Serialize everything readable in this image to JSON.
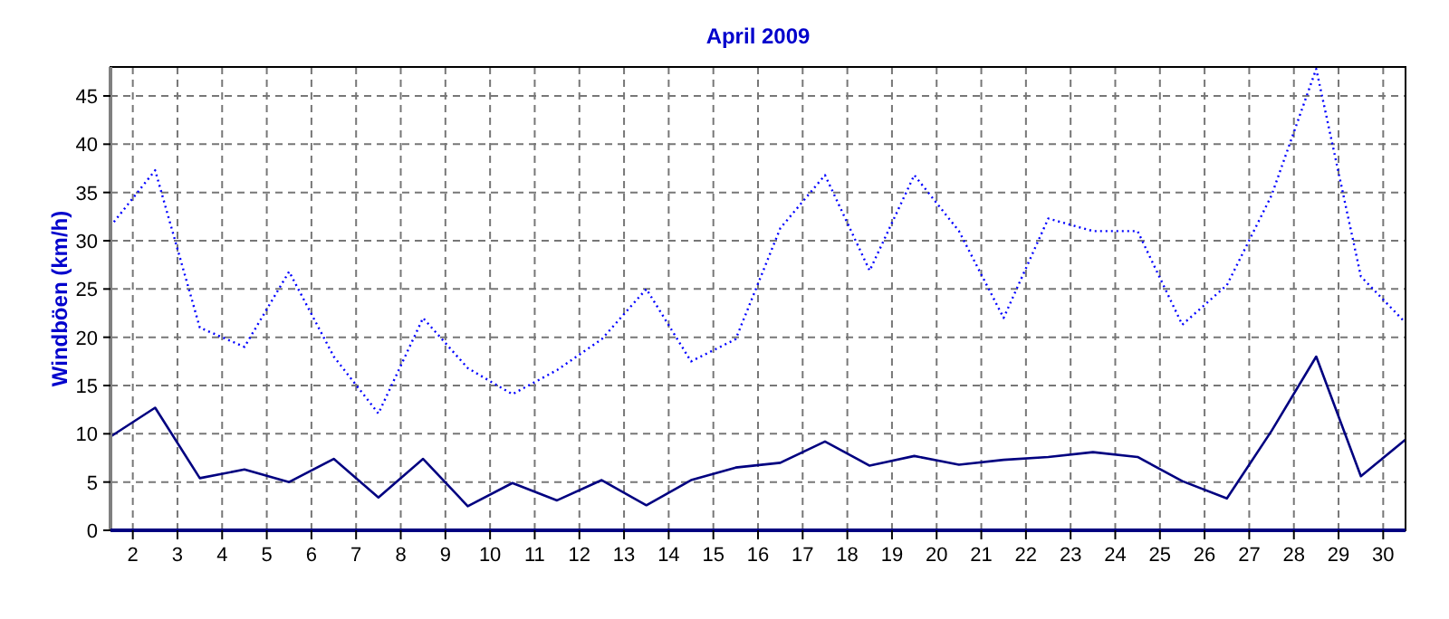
{
  "chart_data": {
    "type": "line",
    "title": "April 2009",
    "ylabel": "Windböen  (km/h)",
    "x": [
      1.5,
      2.5,
      3.5,
      4.5,
      5.5,
      6.5,
      7.5,
      8.5,
      9.5,
      10.5,
      11.5,
      12.5,
      13.5,
      14.5,
      15.5,
      16.5,
      17.5,
      18.5,
      19.5,
      20.5,
      21.5,
      22.5,
      23.5,
      24.5,
      25.5,
      26.5,
      27.5,
      28.5,
      29.5,
      30.5
    ],
    "xlim": [
      1.5,
      30.5
    ],
    "xticks": [
      2,
      3,
      4,
      5,
      6,
      7,
      8,
      9,
      10,
      11,
      12,
      13,
      14,
      15,
      16,
      17,
      18,
      19,
      20,
      21,
      22,
      23,
      24,
      25,
      26,
      27,
      28,
      29,
      30
    ],
    "ylim": [
      0,
      48
    ],
    "yticks": [
      0,
      5,
      10,
      15,
      20,
      25,
      30,
      35,
      40,
      45
    ],
    "grid": true,
    "marker": "none",
    "series": [
      {
        "color": "#0000ff",
        "line_style": "dotted",
        "values": [
          31.5,
          37.3,
          21,
          19,
          26.8,
          18,
          12.1,
          22,
          16.8,
          14.1,
          16.6,
          19.8,
          25,
          17.5,
          19.8,
          31.3,
          36.8,
          26.9,
          36.8,
          31,
          22,
          32.3,
          31,
          31,
          21.3,
          25.4,
          34.7,
          47.8,
          26.3,
          21.5
        ]
      },
      {
        "color": "#000080",
        "line_style": "solid",
        "values": [
          9.7,
          12.7,
          5.4,
          6.3,
          5.0,
          7.4,
          3.4,
          7.4,
          2.5,
          4.9,
          3.1,
          5.2,
          2.6,
          5.2,
          6.5,
          7.0,
          9.2,
          6.7,
          7.7,
          6.8,
          7.3,
          7.6,
          8.1,
          7.6,
          5.1,
          3.3,
          10.3,
          18,
          5.6,
          9.4
        ]
      }
    ]
  }
}
